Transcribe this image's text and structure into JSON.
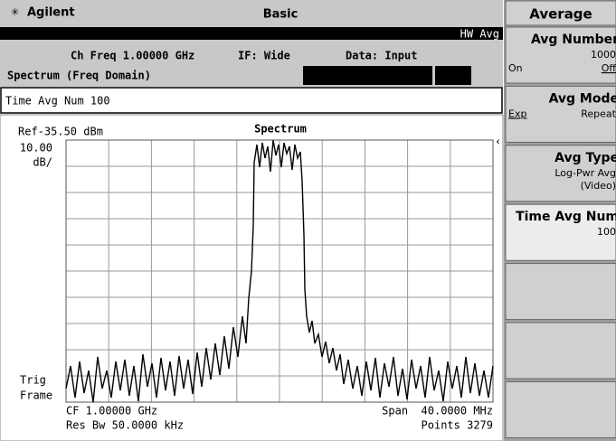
{
  "header": {
    "logo": "Agilent",
    "mode": "Basic"
  },
  "status": {
    "indicator": "HW Avg",
    "ch_freq": "Ch Freq 1.00000 GHz",
    "if": "IF: Wide",
    "data": "Data: Input",
    "view": "Spectrum (Freq Domain)"
  },
  "input": "Time Avg Num 100",
  "display": {
    "ref": "Ref-35.50 dBm",
    "title": "Spectrum",
    "scale_value": "10.00",
    "scale_unit": "dB/",
    "trig": "Trig",
    "frame": "Frame",
    "cf": "CF 1.00000 GHz",
    "res_bw": "Res Bw 50.0000 kHz",
    "span": "Span  40.0000 MHz",
    "points": "Points 3279"
  },
  "menu": {
    "title": "Average",
    "keys": [
      {
        "label": "Avg Number",
        "value": "1000",
        "left": "On",
        "right": "Off"
      },
      {
        "label": "Avg Mode",
        "left": "Exp",
        "right": "Repeat"
      },
      {
        "label": "Avg Type",
        "value": "Log-Pwr Avg",
        "value2": "(Video)"
      },
      {
        "label": "Time Avg Num",
        "value": "100"
      }
    ]
  }
}
